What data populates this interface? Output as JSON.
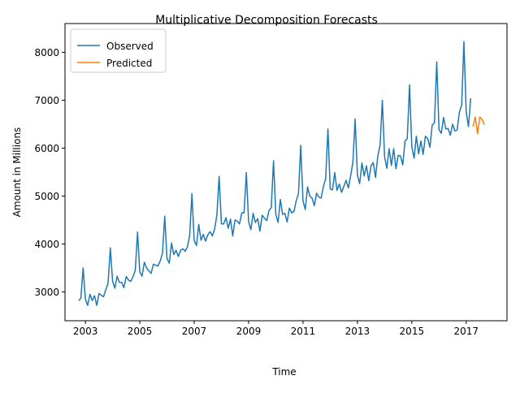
{
  "chart_data": {
    "type": "line",
    "title": "Multiplicative Decomposition Forecasts",
    "xlabel": "Time",
    "ylabel": "Amount in Millions",
    "xlim": [
      2002.25,
      2018.5
    ],
    "ylim": [
      2400,
      8600
    ],
    "x_ticks": [
      2003,
      2005,
      2007,
      2009,
      2011,
      2013,
      2015,
      2017
    ],
    "y_ticks": [
      3000,
      4000,
      5000,
      6000,
      7000,
      8000
    ],
    "grid": false,
    "legend_position": "upper left",
    "series": [
      {
        "name": "Observed",
        "color": "#1f77b4",
        "start": "2002-10",
        "values": [
          2820,
          2870,
          3500,
          2850,
          2720,
          2950,
          2820,
          2920,
          2720,
          2970,
          2930,
          2900,
          3050,
          3180,
          3920,
          3220,
          3080,
          3330,
          3200,
          3200,
          3090,
          3320,
          3250,
          3220,
          3320,
          3450,
          4250,
          3420,
          3330,
          3620,
          3500,
          3440,
          3390,
          3580,
          3560,
          3540,
          3650,
          3800,
          4580,
          3700,
          3600,
          4020,
          3780,
          3870,
          3740,
          3870,
          3900,
          3850,
          3940,
          4180,
          5050,
          4070,
          3970,
          4410,
          4080,
          4200,
          4060,
          4190,
          4260,
          4170,
          4310,
          4600,
          5410,
          4420,
          4420,
          4550,
          4330,
          4520,
          4170,
          4500,
          4480,
          4420,
          4650,
          4650,
          5490,
          4470,
          4300,
          4640,
          4450,
          4530,
          4270,
          4600,
          4540,
          4490,
          4700,
          4760,
          5740,
          4620,
          4450,
          4930,
          4620,
          4640,
          4460,
          4750,
          4650,
          4680,
          4900,
          5050,
          6060,
          4900,
          4720,
          5190,
          5000,
          4960,
          4800,
          5060,
          4980,
          4960,
          5200,
          5360,
          6400,
          5150,
          5130,
          5490,
          5120,
          5250,
          5080,
          5200,
          5330,
          5170,
          5420,
          5700,
          6610,
          5440,
          5260,
          5690,
          5420,
          5630,
          5320,
          5630,
          5700,
          5390,
          5840,
          6060,
          7000,
          5820,
          5580,
          5990,
          5640,
          5990,
          5570,
          5850,
          5840,
          5650,
          6150,
          6200,
          7320,
          6030,
          5790,
          6250,
          5880,
          6150,
          5870,
          6250,
          6200,
          6020,
          6480,
          6530,
          7800,
          6390,
          6310,
          6640,
          6400,
          6410,
          6270,
          6500,
          6360,
          6380,
          6750,
          6900,
          8220,
          6750,
          6450,
          7040
        ]
      },
      {
        "name": "Predicted",
        "color": "#ff7f0e",
        "start": "2017-04",
        "values": [
          6450,
          6650,
          6300,
          6650,
          6600,
          6490
        ]
      }
    ]
  }
}
